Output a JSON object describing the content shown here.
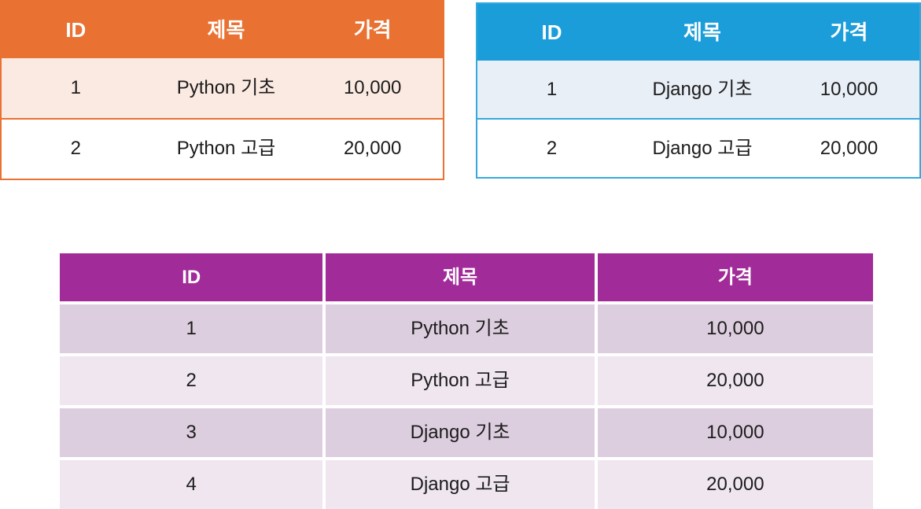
{
  "page_bg": "#FFFFFF",
  "text_color": "#1C1C1C",
  "tables": [
    {
      "name": "python-courses-table",
      "theme": {
        "header_bg": "#E97132",
        "header_text": "#FFFFFF",
        "border": "#E97132",
        "row_alt_bg": "#FBEAE2",
        "row_bg": "#FFFFFF"
      },
      "columns": [
        "ID",
        "제목",
        "가격"
      ],
      "rows": [
        [
          "1",
          "Python 기초",
          "10,000"
        ],
        [
          "2",
          "Python 고급",
          "20,000"
        ]
      ]
    },
    {
      "name": "django-courses-table",
      "theme": {
        "header_bg": "#1B9DD9",
        "header_text": "#FFFFFF",
        "border": "#35A9DD",
        "row_alt_bg": "#E9EFF7",
        "row_bg": "#FFFFFF"
      },
      "columns": [
        "ID",
        "제목",
        "가격"
      ],
      "rows": [
        [
          "1",
          "Django 기초",
          "10,000"
        ],
        [
          "2",
          "Django 고급",
          "20,000"
        ]
      ]
    },
    {
      "name": "combined-courses-table",
      "theme": {
        "header_bg": "#A22B9A",
        "header_text": "#FFFFFF",
        "border": "#FFFFFF",
        "row_alt_bg": "#DDCEDF",
        "row_bg": "#EFE6F0"
      },
      "columns": [
        "ID",
        "제목",
        "가격"
      ],
      "rows": [
        [
          "1",
          "Python 기초",
          "10,000"
        ],
        [
          "2",
          "Python 고급",
          "20,000"
        ],
        [
          "3",
          "Django 기초",
          "10,000"
        ],
        [
          "4",
          "Django 고급",
          "20,000"
        ]
      ]
    }
  ]
}
